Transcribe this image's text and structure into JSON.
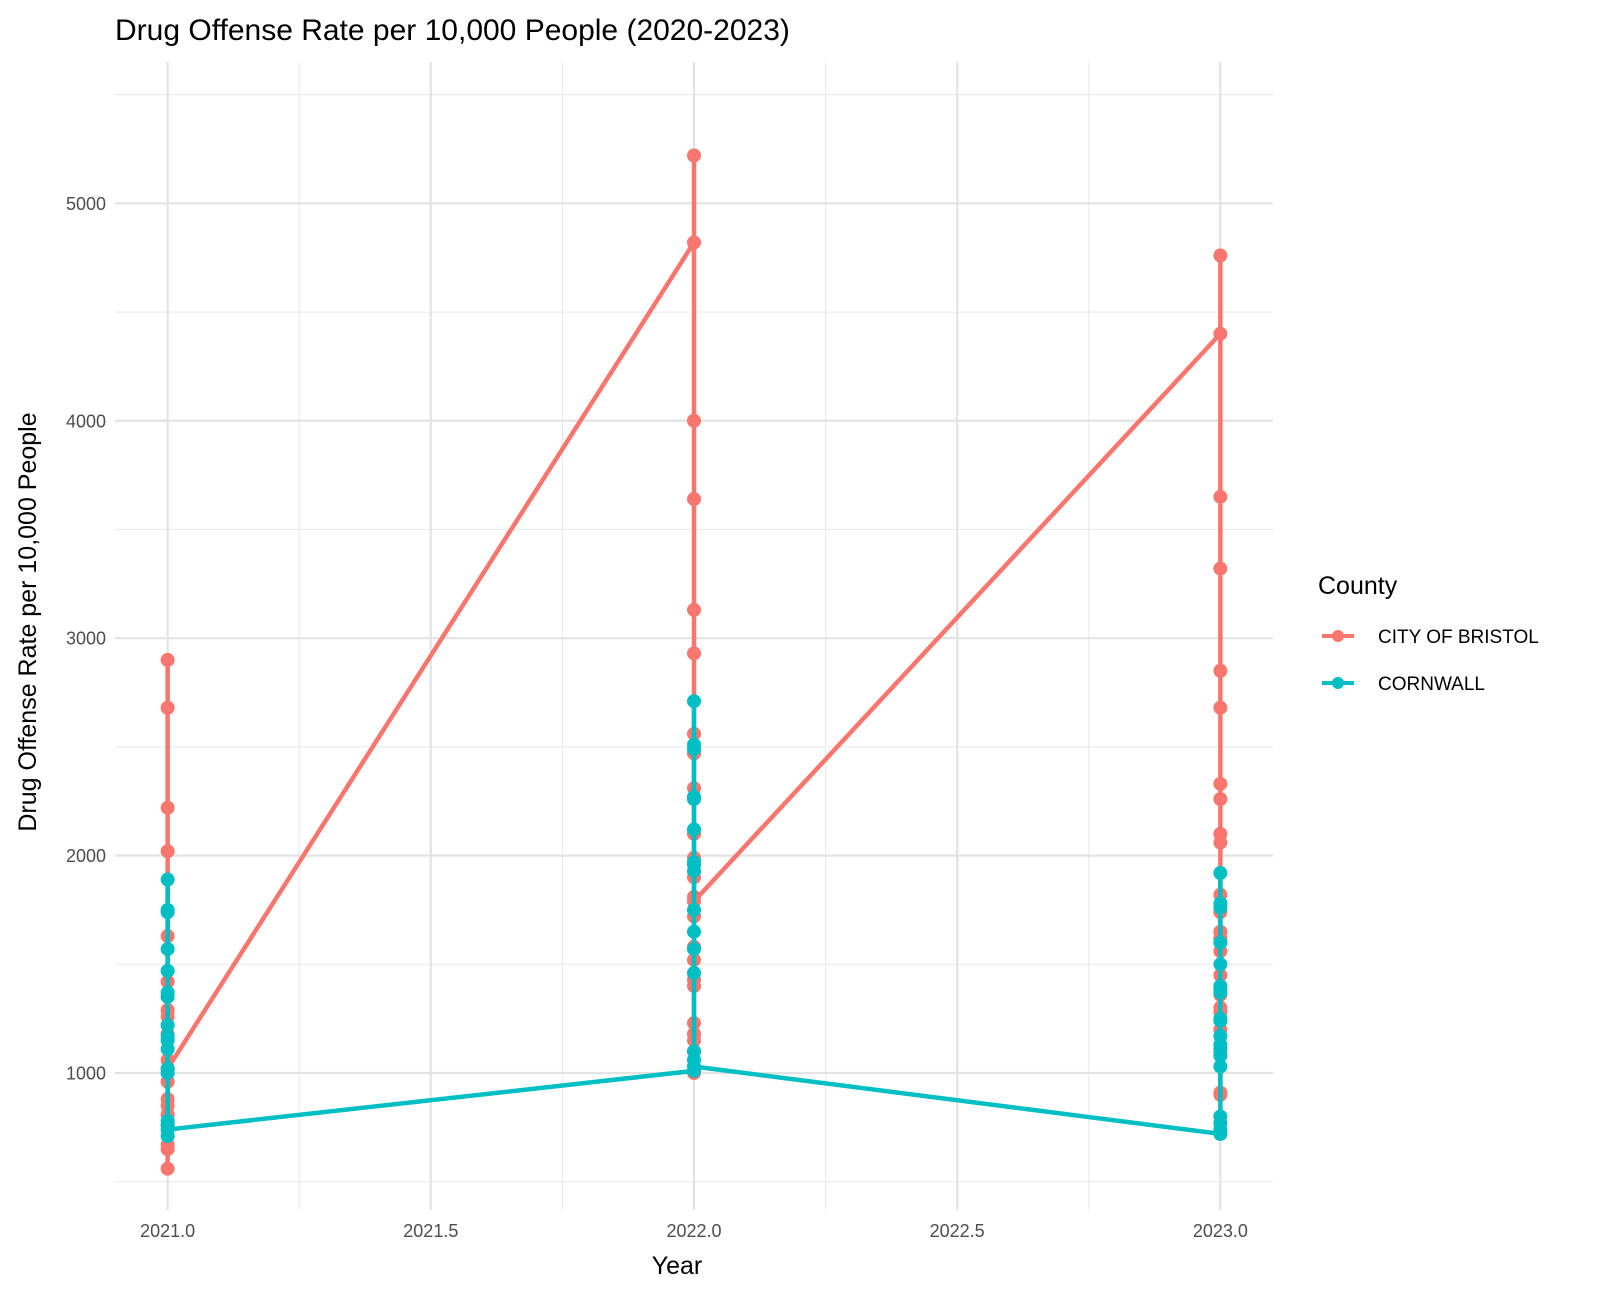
{
  "chart_data": {
    "type": "line",
    "title": "Drug Offense Rate per 10,000 People (2020-2023)",
    "xlabel": "Year",
    "ylabel": "Drug Offense Rate per 10,000 People",
    "xlim": [
      2020.9,
      2023.1
    ],
    "ylim": [
      370,
      5650
    ],
    "x_ticks": [
      2021.0,
      2021.5,
      2022.0,
      2022.5,
      2023.0
    ],
    "x_tick_labels": [
      "2021.0",
      "2021.5",
      "2022.0",
      "2022.5",
      "2023.0"
    ],
    "y_ticks": [
      1000,
      2000,
      3000,
      4000,
      5000
    ],
    "y_tick_labels": [
      "1000",
      "2000",
      "3000",
      "4000",
      "5000"
    ],
    "grid": true,
    "legend": {
      "title": "County",
      "placement": "right"
    },
    "series": [
      {
        "name": "CITY OF BRISTOL",
        "color": "#F8766D",
        "points": [
          [
            2021.0,
            2900
          ],
          [
            2021.0,
            2680
          ],
          [
            2021.0,
            2220
          ],
          [
            2021.0,
            2020
          ],
          [
            2021.0,
            1630
          ],
          [
            2021.0,
            1420
          ],
          [
            2021.0,
            1290
          ],
          [
            2021.0,
            1260
          ],
          [
            2021.0,
            1180
          ],
          [
            2021.0,
            1060
          ],
          [
            2021.0,
            960
          ],
          [
            2021.0,
            880
          ],
          [
            2021.0,
            850
          ],
          [
            2021.0,
            810
          ],
          [
            2021.0,
            760
          ],
          [
            2021.0,
            670
          ],
          [
            2021.0,
            650
          ],
          [
            2021.0,
            560
          ],
          [
            2021.0,
            1020
          ],
          [
            2022.0,
            4820
          ],
          [
            2022.0,
            5220
          ],
          [
            2022.0,
            4000
          ],
          [
            2022.0,
            3640
          ],
          [
            2022.0,
            3130
          ],
          [
            2022.0,
            2930
          ],
          [
            2022.0,
            2560
          ],
          [
            2022.0,
            2470
          ],
          [
            2022.0,
            2310
          ],
          [
            2022.0,
            2100
          ],
          [
            2022.0,
            1990
          ],
          [
            2022.0,
            1900
          ],
          [
            2022.0,
            1810
          ],
          [
            2022.0,
            1720
          ],
          [
            2022.0,
            1580
          ],
          [
            2022.0,
            1520
          ],
          [
            2022.0,
            1430
          ],
          [
            2022.0,
            1400
          ],
          [
            2022.0,
            1230
          ],
          [
            2022.0,
            1180
          ],
          [
            2022.0,
            1150
          ],
          [
            2022.0,
            1100
          ],
          [
            2022.0,
            1000
          ],
          [
            2022.0,
            1790
          ],
          [
            2023.0,
            4400
          ],
          [
            2023.0,
            4760
          ],
          [
            2023.0,
            3650
          ],
          [
            2023.0,
            3320
          ],
          [
            2023.0,
            2850
          ],
          [
            2023.0,
            2680
          ],
          [
            2023.0,
            2330
          ],
          [
            2023.0,
            2260
          ],
          [
            2023.0,
            2100
          ],
          [
            2023.0,
            2060
          ],
          [
            2023.0,
            1820
          ],
          [
            2023.0,
            1740
          ],
          [
            2023.0,
            1650
          ],
          [
            2023.0,
            1620
          ],
          [
            2023.0,
            1560
          ],
          [
            2023.0,
            1450
          ],
          [
            2023.0,
            1360
          ],
          [
            2023.0,
            1300
          ],
          [
            2023.0,
            1280
          ],
          [
            2023.0,
            1200
          ],
          [
            2023.0,
            1090
          ],
          [
            2023.0,
            910
          ],
          [
            2023.0,
            900
          ]
        ]
      },
      {
        "name": "CORNWALL",
        "color": "#00BFC4",
        "points": [
          [
            2021.0,
            1890
          ],
          [
            2021.0,
            1750
          ],
          [
            2021.0,
            1740
          ],
          [
            2021.0,
            1570
          ],
          [
            2021.0,
            1470
          ],
          [
            2021.0,
            1370
          ],
          [
            2021.0,
            1350
          ],
          [
            2021.0,
            1220
          ],
          [
            2021.0,
            1170
          ],
          [
            2021.0,
            1150
          ],
          [
            2021.0,
            1110
          ],
          [
            2021.0,
            1020
          ],
          [
            2021.0,
            1000
          ],
          [
            2021.0,
            780
          ],
          [
            2021.0,
            760
          ],
          [
            2021.0,
            710
          ],
          [
            2021.0,
            740
          ],
          [
            2022.0,
            1010
          ],
          [
            2022.0,
            2710
          ],
          [
            2022.0,
            2510
          ],
          [
            2022.0,
            2490
          ],
          [
            2022.0,
            2270
          ],
          [
            2022.0,
            2260
          ],
          [
            2022.0,
            2120
          ],
          [
            2022.0,
            1970
          ],
          [
            2022.0,
            1960
          ],
          [
            2022.0,
            1930
          ],
          [
            2022.0,
            1750
          ],
          [
            2022.0,
            1650
          ],
          [
            2022.0,
            1570
          ],
          [
            2022.0,
            1460
          ],
          [
            2022.0,
            1100
          ],
          [
            2022.0,
            1060
          ],
          [
            2022.0,
            1030
          ],
          [
            2023.0,
            720
          ],
          [
            2023.0,
            1920
          ],
          [
            2023.0,
            1780
          ],
          [
            2023.0,
            1760
          ],
          [
            2023.0,
            1600
          ],
          [
            2023.0,
            1500
          ],
          [
            2023.0,
            1400
          ],
          [
            2023.0,
            1390
          ],
          [
            2023.0,
            1370
          ],
          [
            2023.0,
            1250
          ],
          [
            2023.0,
            1240
          ],
          [
            2023.0,
            1170
          ],
          [
            2023.0,
            1130
          ],
          [
            2023.0,
            1110
          ],
          [
            2023.0,
            1080
          ],
          [
            2023.0,
            1030
          ],
          [
            2023.0,
            800
          ],
          [
            2023.0,
            770
          ],
          [
            2023.0,
            740
          ],
          [
            2023.0,
            720
          ]
        ]
      }
    ]
  }
}
